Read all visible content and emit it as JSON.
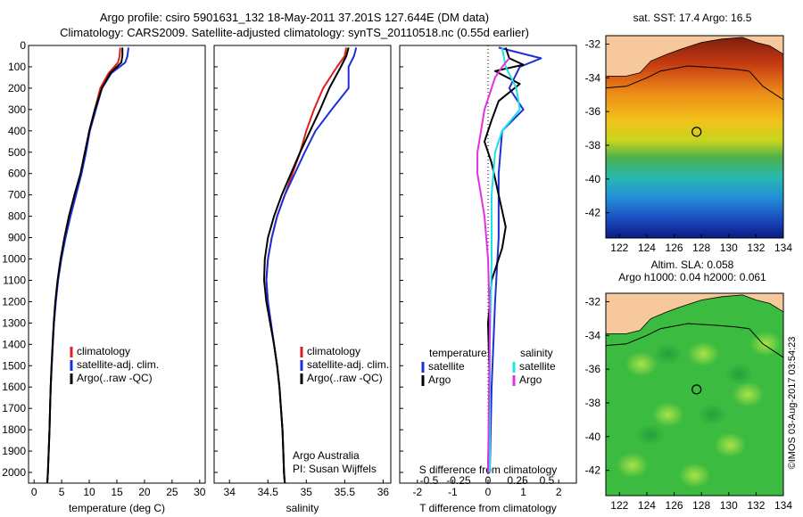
{
  "header": {
    "line1": "Argo profile: csiro 5901631_132 18-May-2011 37.201S 127.644E (DM data)",
    "line2": "Climatology: CARS2009. Satellite-adjusted climatology: synTS_20110518.nc (0.55d earlier)"
  },
  "credits": {
    "group": "Argo Australia",
    "pi": "PI: Susan Wijffels",
    "stamp": "©IMOS 03-Aug-2017 03:54:23"
  },
  "colors": {
    "climatology": "#dd1f1f",
    "satellite": "#1f2fd8",
    "argo": "#000000",
    "sal_satellite": "#1ee0e8",
    "sal_argo": "#e032e0",
    "land": "#f6c89b"
  },
  "chart_data": [
    {
      "type": "line",
      "panel": "temperature",
      "xlabel": "temperature (deg C)",
      "ylabel": "",
      "xlim": [
        -1,
        31
      ],
      "ylim": [
        2050,
        0
      ],
      "xticks": [
        0,
        5,
        10,
        15,
        20,
        25,
        30
      ],
      "yticks": [
        0,
        100,
        200,
        300,
        400,
        500,
        600,
        700,
        800,
        900,
        1000,
        1100,
        1200,
        1300,
        1400,
        1500,
        1600,
        1700,
        1800,
        1900,
        2000
      ],
      "legend": [
        "climatology",
        "satellite-adj. clim.",
        "Argo(..raw -QC)"
      ],
      "series": [
        {
          "name": "climatology",
          "color": "#dd1f1f",
          "points": [
            [
              15.6,
              10
            ],
            [
              15.5,
              50
            ],
            [
              15.2,
              80
            ],
            [
              13.5,
              130
            ],
            [
              12.0,
              200
            ],
            [
              11.0,
              300
            ],
            [
              10.0,
              400
            ],
            [
              9.3,
              500
            ],
            [
              8.5,
              600
            ],
            [
              7.5,
              700
            ],
            [
              6.5,
              800
            ],
            [
              5.6,
              900
            ],
            [
              4.9,
              1000
            ],
            [
              4.3,
              1100
            ],
            [
              3.9,
              1200
            ],
            [
              3.6,
              1300
            ],
            [
              3.4,
              1400
            ],
            [
              3.2,
              1500
            ],
            [
              3.0,
              1600
            ],
            [
              2.9,
              1700
            ],
            [
              2.8,
              1800
            ],
            [
              2.65,
              1900
            ],
            [
              2.5,
              2000
            ],
            [
              2.4,
              2050
            ]
          ]
        },
        {
          "name": "satellite-adj. clim.",
          "color": "#1f2fd8",
          "points": [
            [
              17.1,
              10
            ],
            [
              16.9,
              50
            ],
            [
              16.5,
              80
            ],
            [
              14.0,
              130
            ],
            [
              12.3,
              200
            ],
            [
              11.2,
              300
            ],
            [
              10.1,
              400
            ],
            [
              9.4,
              500
            ],
            [
              8.6,
              600
            ],
            [
              7.6,
              700
            ],
            [
              6.6,
              800
            ],
            [
              5.7,
              900
            ],
            [
              4.95,
              1000
            ],
            [
              4.35,
              1100
            ],
            [
              3.95,
              1200
            ],
            [
              3.6,
              1300
            ],
            [
              3.4,
              1400
            ],
            [
              3.2,
              1500
            ],
            [
              3.0,
              1600
            ],
            [
              2.9,
              1700
            ],
            [
              2.8,
              1800
            ],
            [
              2.65,
              1900
            ],
            [
              2.5,
              2000
            ],
            [
              2.4,
              2050
            ]
          ]
        },
        {
          "name": "Argo(..raw -QC)",
          "color": "#000000",
          "points": [
            [
              16.0,
              10
            ],
            [
              16.0,
              50
            ],
            [
              15.8,
              80
            ],
            [
              13.8,
              130
            ],
            [
              12.3,
              200
            ],
            [
              11.0,
              300
            ],
            [
              10.0,
              400
            ],
            [
              9.2,
              500
            ],
            [
              8.4,
              600
            ],
            [
              7.3,
              700
            ],
            [
              6.3,
              800
            ],
            [
              5.5,
              900
            ],
            [
              4.8,
              1000
            ],
            [
              4.25,
              1100
            ],
            [
              3.85,
              1200
            ],
            [
              3.55,
              1300
            ],
            [
              3.35,
              1400
            ],
            [
              3.15,
              1500
            ],
            [
              3.0,
              1600
            ],
            [
              2.9,
              1700
            ],
            [
              2.8,
              1800
            ],
            [
              2.65,
              1900
            ],
            [
              2.5,
              2000
            ],
            [
              2.4,
              2050
            ]
          ]
        }
      ]
    },
    {
      "type": "line",
      "panel": "salinity",
      "xlabel": "salinity",
      "ylabel": "",
      "xlim": [
        33.8,
        36.1
      ],
      "ylim": [
        2050,
        0
      ],
      "xticks": [
        34,
        34.5,
        35,
        35.5,
        36
      ],
      "legend": [
        "climatology",
        "satellite-adj. clim.",
        "Argo(..raw -QC)"
      ],
      "series": [
        {
          "name": "climatology",
          "color": "#dd1f1f",
          "points": [
            [
              35.52,
              10
            ],
            [
              35.5,
              50
            ],
            [
              35.4,
              100
            ],
            [
              35.22,
              200
            ],
            [
              35.1,
              300
            ],
            [
              35.0,
              400
            ],
            [
              34.92,
              500
            ],
            [
              34.82,
              600
            ],
            [
              34.72,
              700
            ],
            [
              34.62,
              800
            ],
            [
              34.55,
              900
            ],
            [
              34.5,
              1000
            ],
            [
              34.48,
              1100
            ],
            [
              34.5,
              1200
            ],
            [
              34.54,
              1300
            ],
            [
              34.58,
              1400
            ],
            [
              34.62,
              1500
            ],
            [
              34.65,
              1600
            ],
            [
              34.67,
              1700
            ],
            [
              34.69,
              1800
            ],
            [
              34.7,
              1900
            ],
            [
              34.71,
              2000
            ],
            [
              34.72,
              2050
            ]
          ]
        },
        {
          "name": "satellite-adj. clim.",
          "color": "#1f2fd8",
          "points": [
            [
              35.65,
              10
            ],
            [
              35.62,
              50
            ],
            [
              35.55,
              100
            ],
            [
              35.55,
              200
            ],
            [
              35.33,
              300
            ],
            [
              35.12,
              400
            ],
            [
              34.98,
              500
            ],
            [
              34.85,
              600
            ],
            [
              34.72,
              700
            ],
            [
              34.62,
              800
            ],
            [
              34.55,
              900
            ],
            [
              34.5,
              1000
            ],
            [
              34.48,
              1100
            ],
            [
              34.5,
              1200
            ],
            [
              34.54,
              1300
            ],
            [
              34.58,
              1400
            ],
            [
              34.62,
              1500
            ],
            [
              34.65,
              1600
            ],
            [
              34.67,
              1700
            ],
            [
              34.69,
              1800
            ],
            [
              34.7,
              1900
            ],
            [
              34.71,
              2000
            ],
            [
              34.72,
              2050
            ]
          ]
        },
        {
          "name": "Argo(..raw -QC)",
          "color": "#000000",
          "points": [
            [
              35.55,
              10
            ],
            [
              35.52,
              50
            ],
            [
              35.45,
              100
            ],
            [
              35.3,
              200
            ],
            [
              35.18,
              300
            ],
            [
              35.05,
              400
            ],
            [
              34.92,
              500
            ],
            [
              34.8,
              600
            ],
            [
              34.68,
              700
            ],
            [
              34.58,
              800
            ],
            [
              34.5,
              900
            ],
            [
              34.46,
              1000
            ],
            [
              34.45,
              1100
            ],
            [
              34.48,
              1200
            ],
            [
              34.53,
              1300
            ],
            [
              34.58,
              1400
            ],
            [
              34.62,
              1500
            ],
            [
              34.65,
              1600
            ],
            [
              34.67,
              1700
            ],
            [
              34.69,
              1800
            ],
            [
              34.7,
              1900
            ],
            [
              34.71,
              2000
            ],
            [
              34.72,
              2050
            ]
          ]
        }
      ]
    },
    {
      "type": "line",
      "panel": "difference",
      "xlabel": "T difference from climatology",
      "secondary_xlabel": "S difference from climatology",
      "xlim": [
        -2.5,
        2.5
      ],
      "ylim": [
        2050,
        0
      ],
      "xticks": [
        -2,
        -1,
        0,
        1,
        2
      ],
      "secondary_xticks": [
        -0.5,
        -0.25,
        0,
        0.25,
        0.5
      ],
      "legend_titles": [
        "temperature",
        "salinity"
      ],
      "legend": [
        "satellite",
        "Argo",
        "satellite",
        "Argo"
      ],
      "series": [
        {
          "name": "temperature satellite",
          "color": "#1f2fd8",
          "points": [
            [
              0.3,
              10
            ],
            [
              1.5,
              60
            ],
            [
              0.9,
              100
            ],
            [
              0.6,
              200
            ],
            [
              1.0,
              300
            ],
            [
              0.4,
              400
            ],
            [
              0.3,
              600
            ],
            [
              0.3,
              900
            ],
            [
              0.2,
              1200
            ],
            [
              0.1,
              1600
            ],
            [
              0.05,
              2000
            ]
          ]
        },
        {
          "name": "temperature Argo",
          "color": "#000000",
          "points": [
            [
              0.5,
              10
            ],
            [
              0.6,
              60
            ],
            [
              1.0,
              90
            ],
            [
              0.2,
              120
            ],
            [
              0.9,
              180
            ],
            [
              0.3,
              260
            ],
            [
              0.1,
              350
            ],
            [
              -0.1,
              450
            ],
            [
              0.1,
              550
            ],
            [
              0.3,
              700
            ],
            [
              0.5,
              850
            ],
            [
              0.4,
              950
            ],
            [
              0.1,
              1100
            ],
            [
              0.0,
              1300
            ],
            [
              0.05,
              1600
            ],
            [
              0.0,
              2000
            ]
          ]
        },
        {
          "name": "salinity satellite",
          "color": "#1ee0e8",
          "points": [
            [
              0.4,
              10
            ],
            [
              0.5,
              100
            ],
            [
              0.8,
              200
            ],
            [
              0.9,
              300
            ],
            [
              0.4,
              400
            ],
            [
              0.2,
              500
            ],
            [
              0.1,
              700
            ],
            [
              0.1,
              1000
            ],
            [
              0.05,
              1400
            ],
            [
              0.05,
              2000
            ]
          ]
        },
        {
          "name": "salinity Argo",
          "color": "#e032e0",
          "points": [
            [
              0.6,
              60
            ],
            [
              0.4,
              100
            ],
            [
              0.2,
              150
            ],
            [
              -0.1,
              300
            ],
            [
              -0.2,
              400
            ],
            [
              -0.3,
              500
            ],
            [
              -0.3,
              600
            ],
            [
              -0.1,
              800
            ],
            [
              0.0,
              1000
            ],
            [
              0.05,
              1300
            ],
            [
              0.0,
              2000
            ]
          ]
        }
      ]
    },
    {
      "type": "heatmap",
      "panel": "sst-map",
      "title": "sat. SST: 17.4  Argo: 16.5",
      "xticks": [
        122,
        124,
        126,
        128,
        130,
        132,
        134
      ],
      "yticks": [
        -32,
        -34,
        -36,
        -38,
        -40,
        -42
      ],
      "xlim": [
        121,
        134
      ],
      "ylim": [
        -43.5,
        -31.5
      ],
      "marker": [
        127.644,
        -37.201
      ]
    },
    {
      "type": "heatmap",
      "panel": "sla-map",
      "title": "Altim. SLA: 0.058",
      "subtitle": "Argo h1000: 0.04 h2000: 0.061",
      "xticks": [
        122,
        124,
        126,
        128,
        130,
        132,
        134
      ],
      "yticks": [
        -32,
        -34,
        -36,
        -38,
        -40,
        -42
      ],
      "xlim": [
        121,
        134
      ],
      "ylim": [
        -43.5,
        -31.5
      ],
      "marker": [
        127.644,
        -37.201
      ]
    }
  ]
}
